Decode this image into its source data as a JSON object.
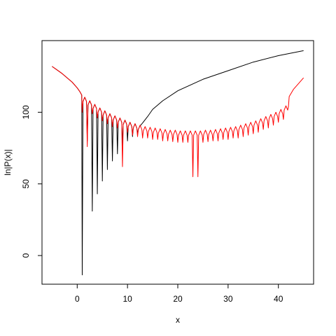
{
  "chart_data": {
    "type": "line",
    "x_label": "x",
    "y_label": "ln|P(x)|",
    "xlim": [
      -7,
      47
    ],
    "ylim": [
      -20,
      150
    ],
    "xticks": [
      0,
      10,
      20,
      30,
      40
    ],
    "yticks": [
      0,
      50,
      100
    ],
    "series": [
      {
        "name": "black",
        "color": "#000000",
        "x": [
          -5,
          -4,
          -3,
          -2,
          -1,
          0,
          0.5,
          0.9,
          1,
          1.15,
          1.5,
          1.85,
          2,
          2.15,
          2.5,
          2.85,
          3,
          3.15,
          3.5,
          3.85,
          4,
          4.15,
          4.5,
          4.85,
          5,
          5.15,
          5.5,
          5.85,
          6,
          6.15,
          6.5,
          6.85,
          7,
          7.15,
          7.5,
          7.85,
          8,
          8.15,
          8.5,
          8.85,
          9,
          9.15,
          9.5,
          9.85,
          10,
          10.15,
          10.5,
          10.85,
          11,
          11.15,
          11.5,
          11.85,
          12,
          12.15,
          12.4,
          13,
          14,
          15,
          17,
          20,
          25,
          30,
          35,
          40,
          45
        ],
        "values": [
          132,
          129.5,
          127,
          124,
          121,
          117,
          114.5,
          112,
          -13.5,
          107.5,
          110.5,
          107.5,
          80,
          105,
          108,
          105,
          31,
          102.5,
          105.5,
          102.5,
          43,
          100,
          103,
          100,
          52,
          98,
          101,
          98,
          60,
          96,
          99,
          96,
          66,
          94.5,
          97.5,
          94.5,
          71,
          93,
          96,
          93,
          76,
          91.5,
          94.5,
          91.5,
          80,
          90,
          93,
          90,
          83,
          89,
          92,
          89,
          85,
          88,
          90,
          92.5,
          97,
          102,
          108,
          115,
          123,
          129,
          135,
          139.5,
          143
        ]
      },
      {
        "name": "red",
        "color": "#ff0000",
        "x": [
          -5,
          -4,
          -3,
          -2,
          -1,
          0,
          0.5,
          0.9,
          1,
          1.15,
          1.5,
          1.85,
          2,
          2.15,
          2.5,
          2.85,
          3,
          3.15,
          3.5,
          3.85,
          4,
          4.15,
          4.5,
          4.85,
          5,
          5.15,
          5.5,
          5.85,
          6,
          6.15,
          6.5,
          6.85,
          7,
          7.15,
          7.5,
          7.85,
          8,
          8.15,
          8.5,
          8.85,
          9,
          9.15,
          9.5,
          9.85,
          10,
          10.15,
          10.5,
          10.85,
          11,
          11.15,
          11.5,
          11.85,
          12,
          12.15,
          12.5,
          12.85,
          13,
          13.15,
          13.5,
          13.85,
          14,
          14.15,
          14.5,
          14.85,
          15,
          15.15,
          15.5,
          15.85,
          16,
          16.15,
          16.5,
          16.85,
          17,
          17.15,
          17.5,
          17.85,
          18,
          18.15,
          18.5,
          18.85,
          19,
          19.15,
          19.5,
          19.85,
          20,
          20.15,
          20.5,
          20.85,
          21,
          21.15,
          21.5,
          21.85,
          22,
          22.15,
          22.5,
          22.85,
          23,
          23.15,
          23.5,
          23.85,
          24,
          24.15,
          24.5,
          24.85,
          25,
          25.15,
          25.5,
          25.85,
          26,
          26.15,
          26.5,
          26.85,
          27,
          27.15,
          27.5,
          27.85,
          28,
          28.15,
          28.5,
          28.85,
          29,
          29.15,
          29.5,
          29.85,
          30,
          30.15,
          30.5,
          30.85,
          31,
          31.15,
          31.5,
          31.85,
          32,
          32.15,
          32.5,
          32.85,
          33,
          33.15,
          33.5,
          33.85,
          34,
          34.15,
          34.5,
          34.85,
          35,
          35.15,
          35.5,
          35.85,
          36,
          36.15,
          36.5,
          36.85,
          37,
          37.15,
          37.5,
          37.85,
          38,
          38.15,
          38.5,
          38.85,
          39,
          39.15,
          39.5,
          39.85,
          40,
          40.15,
          40.5,
          40.85,
          41,
          41.15,
          41.5,
          41.85,
          42,
          42.15,
          43,
          44,
          45
        ],
        "values": [
          132,
          129.5,
          127,
          124,
          121,
          117,
          114.5,
          112,
          100,
          107.5,
          110.5,
          107.5,
          76,
          105,
          108,
          105,
          99,
          102.5,
          105.5,
          102.5,
          96,
          100,
          103,
          100,
          94,
          98,
          101,
          98,
          92,
          96,
          99,
          96,
          90,
          94.5,
          97.5,
          94.5,
          89,
          93,
          96,
          93,
          62,
          91.5,
          94.5,
          91.5,
          86,
          90,
          93,
          90,
          84,
          89,
          92,
          89,
          83,
          88,
          91,
          88,
          82,
          87,
          90,
          87,
          82,
          86.5,
          89.5,
          86.5,
          81,
          86,
          89,
          86,
          81,
          85.5,
          88.5,
          85.5,
          80,
          85,
          88,
          85,
          80,
          84.5,
          87.5,
          84.5,
          79.5,
          84.5,
          87.5,
          84.5,
          79,
          84,
          87,
          84,
          79,
          84,
          87,
          84,
          79,
          84,
          87,
          84,
          55,
          84,
          87,
          84,
          55,
          84,
          87,
          84,
          79,
          84.5,
          87.5,
          84.5,
          79.5,
          84.5,
          87.5,
          84.5,
          80,
          85,
          88,
          85,
          80,
          85.5,
          88.5,
          85.5,
          81,
          86,
          89,
          86,
          81,
          86.5,
          89.5,
          86.5,
          82,
          87,
          90,
          87,
          82,
          88,
          91,
          88,
          83,
          89,
          92,
          89,
          84,
          90,
          93,
          90,
          85,
          91,
          94,
          91,
          86,
          92.5,
          95.5,
          92.5,
          88,
          94,
          97,
          94,
          89,
          95.5,
          98.5,
          95.5,
          91,
          97,
          100,
          97,
          93,
          99,
          102,
          99,
          95,
          101.5,
          104.5,
          101.5,
          104,
          111,
          116,
          120,
          124
        ]
      }
    ]
  }
}
